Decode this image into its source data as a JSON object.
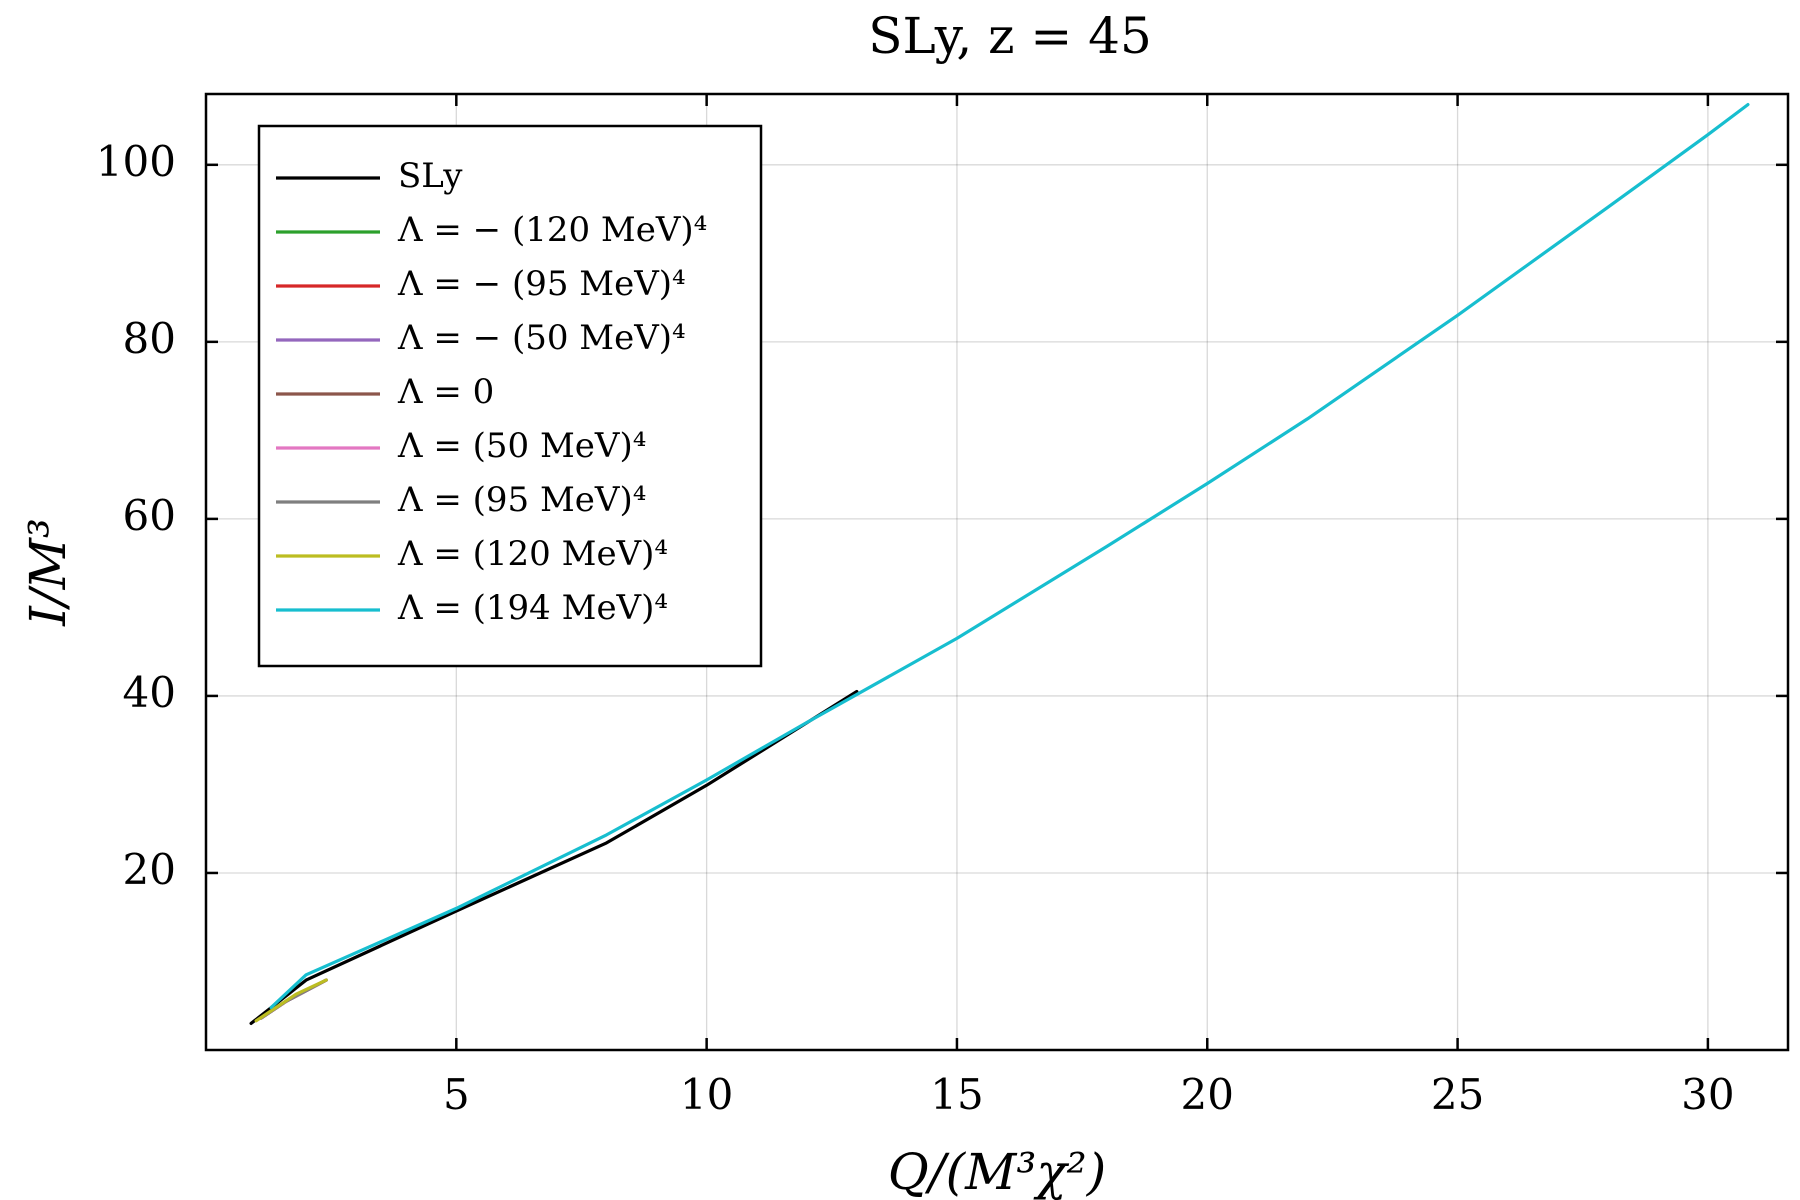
{
  "chart_data": {
    "type": "line",
    "title": "SLy,  z = 45",
    "xlabel": "Q/(M³χ²)",
    "ylabel": "I/M³",
    "xlim": [
      0.0,
      31.6
    ],
    "ylim": [
      0.0,
      108.0
    ],
    "xticks": [
      5,
      10,
      15,
      20,
      25,
      30
    ],
    "yticks": [
      20,
      40,
      60,
      80,
      100
    ],
    "grid": true,
    "legend_position": "top-left",
    "series": [
      {
        "name": "SLy",
        "color": "#000000",
        "x": [
          0.9,
          2.0,
          5.0,
          8.0,
          10.0,
          13.0
        ],
        "y": [
          3.0,
          7.9,
          15.7,
          23.4,
          29.9,
          40.5
        ]
      },
      {
        "name": "Λ =  − (120 MeV)⁴",
        "color": "#2ca02c",
        "x": [
          1.1,
          1.6,
          2.4
        ],
        "y": [
          3.6,
          5.5,
          7.9
        ]
      },
      {
        "name": "Λ =  − (95 MeV)⁴",
        "color": "#d62728",
        "x": [
          1.1,
          1.6,
          2.4
        ],
        "y": [
          3.6,
          5.5,
          7.9
        ]
      },
      {
        "name": "Λ =  − (50 MeV)⁴",
        "color": "#9467bd",
        "x": [
          1.1,
          1.6,
          2.4
        ],
        "y": [
          3.6,
          5.5,
          7.9
        ]
      },
      {
        "name": "Λ = 0",
        "color": "#8c564b",
        "x": [
          1.1,
          1.6,
          2.4
        ],
        "y": [
          3.6,
          5.5,
          7.9
        ]
      },
      {
        "name": "Λ = (50 MeV)⁴",
        "color": "#e377c2",
        "x": [
          1.1,
          1.6,
          2.4
        ],
        "y": [
          3.6,
          5.5,
          7.9
        ]
      },
      {
        "name": "Λ = (95 MeV)⁴",
        "color": "#7f7f7f",
        "x": [
          1.1,
          1.6,
          2.4
        ],
        "y": [
          3.6,
          5.5,
          7.9
        ]
      },
      {
        "name": "Λ = (120 MeV)⁴",
        "color": "#bcbd22",
        "x": [
          1.0,
          1.4,
          1.8,
          2.4
        ],
        "y": [
          3.3,
          4.8,
          6.3,
          7.9
        ]
      },
      {
        "name": "Λ = (194 MeV)⁴",
        "color": "#17becf",
        "x": [
          1.3,
          2.0,
          5.0,
          8.0,
          10.0,
          12.0,
          15.0,
          18.0,
          20.0,
          22.0,
          25.0,
          28.0,
          30.0,
          30.8
        ],
        "y": [
          4.8,
          8.5,
          16.0,
          24.3,
          30.5,
          37.0,
          46.5,
          56.9,
          64.0,
          71.3,
          83.0,
          95.2,
          103.4,
          106.8
        ]
      }
    ]
  }
}
